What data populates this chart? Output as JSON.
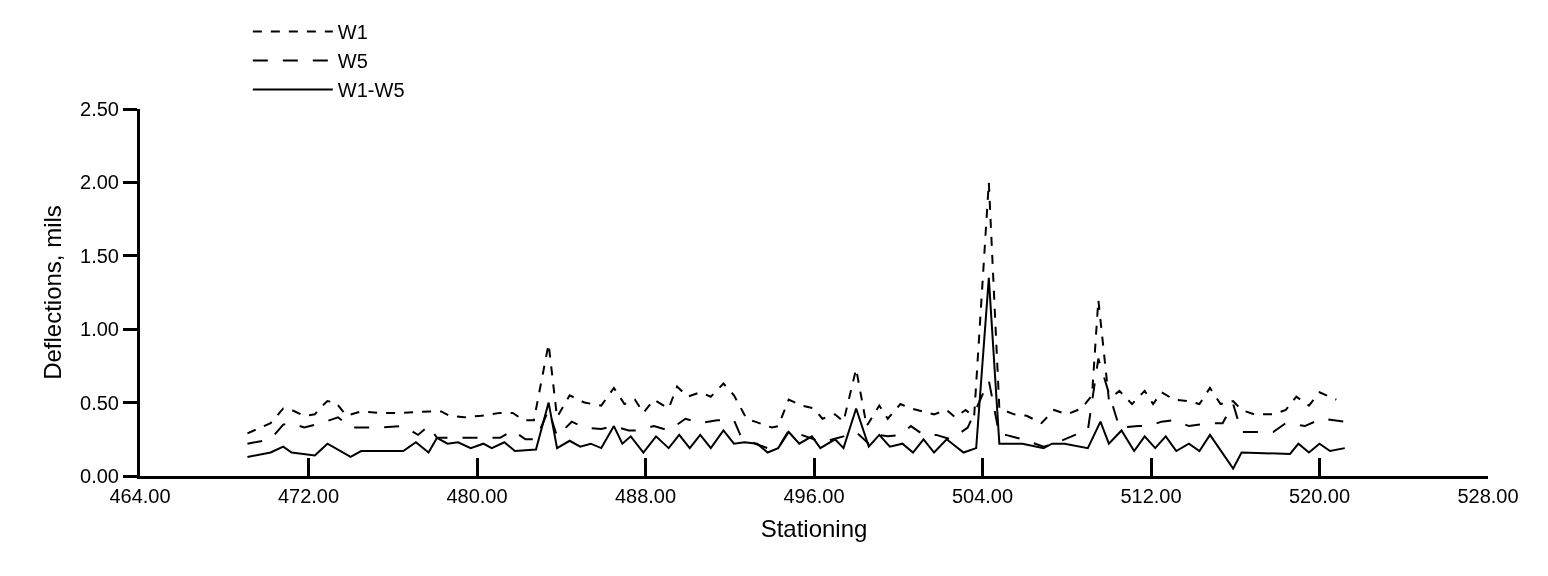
{
  "chart_data": {
    "type": "line",
    "xlabel": "Stationing",
    "ylabel": "Deflections, mils",
    "xlim": [
      464,
      528
    ],
    "ylim": [
      0,
      2.5
    ],
    "xticks": [
      {
        "value": 464,
        "label": "464.00"
      },
      {
        "value": 472,
        "label": "472.00"
      },
      {
        "value": 480,
        "label": "480.00"
      },
      {
        "value": 488,
        "label": "488.00"
      },
      {
        "value": 496,
        "label": "496.00"
      },
      {
        "value": 504,
        "label": "504.00"
      },
      {
        "value": 512,
        "label": "512.00"
      },
      {
        "value": 520,
        "label": "520.00"
      },
      {
        "value": 528,
        "label": "528.00"
      }
    ],
    "yticks": [
      {
        "value": 0,
        "label": "0.00"
      },
      {
        "value": 0.5,
        "label": "0.50"
      },
      {
        "value": 1,
        "label": "1.00"
      },
      {
        "value": 1.5,
        "label": "1.50"
      },
      {
        "value": 2,
        "label": "2.00"
      },
      {
        "value": 2.5,
        "label": "2.50"
      }
    ],
    "legend": "top left",
    "marker": "none",
    "series": [
      {
        "name": "W1",
        "color": "#000000",
        "line_style": "dotted",
        "x": [
          469.1,
          470.2,
          470.8,
          471.2,
          471.8,
          472.3,
          472.6,
          472.9,
          473.3,
          473.8,
          474.5,
          475.3,
          476.4,
          477.8,
          478.3,
          478.7,
          479.4,
          480.2,
          481.1,
          481.7,
          482.2,
          482.7,
          483.4,
          483.8,
          484.4,
          485.1,
          485.9,
          486.5,
          487.0,
          487.5,
          487.9,
          488.4,
          489.1,
          489.5,
          490.0,
          490.6,
          491.1,
          491.7,
          492.2,
          492.8,
          493.2,
          494.0,
          494.3,
          494.8,
          495.4,
          496.0,
          496.4,
          497.0,
          497.4,
          498.0,
          498.5,
          499.1,
          499.5,
          500.1,
          500.6,
          501.7,
          502.3,
          502.7,
          503.2,
          503.6,
          504.3,
          504.8,
          505.5,
          506.1,
          506.8,
          507.4,
          508.0,
          508.7,
          509.2,
          509.5,
          510.0,
          510.5,
          511.1,
          511.7,
          512.1,
          512.5,
          513.1,
          513.8,
          514.3,
          514.8,
          515.3,
          515.9,
          516.3,
          516.9,
          517.8,
          518.4,
          518.9,
          519.5,
          520.0,
          520.8
        ],
        "values": [
          0.29,
          0.36,
          0.46,
          0.45,
          0.41,
          0.42,
          0.47,
          0.51,
          0.5,
          0.41,
          0.44,
          0.43,
          0.43,
          0.44,
          0.44,
          0.41,
          0.4,
          0.41,
          0.43,
          0.43,
          0.38,
          0.38,
          0.9,
          0.4,
          0.55,
          0.5,
          0.48,
          0.6,
          0.49,
          0.52,
          0.43,
          0.52,
          0.46,
          0.61,
          0.54,
          0.57,
          0.54,
          0.63,
          0.55,
          0.39,
          0.37,
          0.33,
          0.34,
          0.52,
          0.48,
          0.46,
          0.39,
          0.42,
          0.37,
          0.73,
          0.34,
          0.48,
          0.39,
          0.49,
          0.46,
          0.42,
          0.45,
          0.4,
          0.45,
          0.4,
          2.0,
          0.46,
          0.42,
          0.41,
          0.36,
          0.45,
          0.42,
          0.46,
          0.55,
          1.2,
          0.52,
          0.58,
          0.49,
          0.58,
          0.49,
          0.57,
          0.52,
          0.51,
          0.49,
          0.6,
          0.49,
          0.51,
          0.45,
          0.42,
          0.42,
          0.45,
          0.54,
          0.48,
          0.57,
          0.52
        ]
      },
      {
        "name": "W5",
        "color": "#000000",
        "line_style": "dashed",
        "x": [
          469.1,
          470.2,
          470.8,
          471.2,
          471.8,
          472.6,
          473.4,
          474.0,
          475.4,
          476.5,
          477.2,
          477.7,
          478.1,
          479.7,
          481.1,
          481.7,
          482.3,
          482.8,
          483.4,
          483.8,
          484.5,
          485.1,
          485.9,
          486.5,
          487.2,
          487.5,
          488.4,
          489.1,
          489.9,
          490.6,
          491.4,
          492.2,
          492.5,
          493.2,
          493.8,
          494.3,
          494.8,
          495.4,
          496.0,
          496.4,
          496.9,
          497.4,
          498.0,
          498.6,
          499.1,
          499.5,
          500.1,
          500.6,
          501.2,
          501.8,
          502.5,
          503.3,
          504.3,
          504.8,
          505.1,
          505.9,
          506.9,
          507.4,
          508.4,
          509.0,
          509.5,
          510.5,
          511.4,
          511.9,
          512.5,
          513.1,
          513.8,
          514.8,
          515.4,
          515.9,
          516.3,
          517.1,
          517.8,
          518.4,
          519.3,
          520.1,
          521.2
        ],
        "values": [
          0.22,
          0.25,
          0.35,
          0.36,
          0.33,
          0.36,
          0.4,
          0.33,
          0.33,
          0.34,
          0.28,
          0.34,
          0.26,
          0.26,
          0.26,
          0.31,
          0.25,
          0.25,
          0.45,
          0.27,
          0.37,
          0.33,
          0.32,
          0.34,
          0.31,
          0.31,
          0.34,
          0.31,
          0.39,
          0.36,
          0.38,
          0.38,
          0.28,
          0.22,
          0.19,
          0.19,
          0.31,
          0.28,
          0.25,
          0.23,
          0.25,
          0.27,
          0.3,
          0.22,
          0.28,
          0.27,
          0.28,
          0.34,
          0.28,
          0.28,
          0.25,
          0.33,
          0.65,
          0.28,
          0.28,
          0.25,
          0.2,
          0.22,
          0.28,
          0.31,
          0.8,
          0.33,
          0.34,
          0.34,
          0.37,
          0.38,
          0.34,
          0.36,
          0.36,
          0.49,
          0.3,
          0.3,
          0.3,
          0.36,
          0.34,
          0.39,
          0.37
        ]
      },
      {
        "name": "W1-W5",
        "color": "#000000",
        "line_style": "solid",
        "x": [
          469.1,
          470.2,
          470.8,
          471.2,
          472.3,
          472.9,
          474.0,
          474.5,
          475.3,
          476.5,
          477.1,
          477.7,
          478.1,
          478.6,
          479.1,
          479.7,
          480.3,
          480.7,
          481.3,
          481.8,
          482.8,
          483.4,
          483.8,
          484.4,
          484.9,
          485.4,
          485.9,
          486.5,
          486.9,
          487.3,
          487.9,
          488.5,
          489.1,
          489.6,
          490.1,
          490.6,
          491.1,
          491.7,
          492.2,
          492.7,
          493.3,
          493.8,
          494.3,
          494.8,
          495.3,
          495.9,
          496.3,
          497.0,
          497.4,
          498.0,
          498.6,
          499.1,
          499.6,
          500.2,
          500.7,
          501.2,
          501.7,
          502.3,
          503.1,
          503.7,
          504.3,
          504.8,
          505.9,
          506.9,
          507.3,
          507.9,
          509.0,
          509.6,
          510.0,
          510.6,
          511.2,
          511.7,
          512.2,
          512.7,
          513.2,
          513.8,
          514.3,
          514.8,
          515.9,
          516.3,
          518.6,
          519.0,
          519.5,
          520.0,
          520.5,
          521.2
        ],
        "values": [
          0.13,
          0.16,
          0.2,
          0.16,
          0.14,
          0.22,
          0.13,
          0.17,
          0.17,
          0.17,
          0.23,
          0.16,
          0.26,
          0.22,
          0.23,
          0.19,
          0.22,
          0.19,
          0.23,
          0.17,
          0.18,
          0.5,
          0.19,
          0.24,
          0.2,
          0.22,
          0.19,
          0.34,
          0.22,
          0.27,
          0.16,
          0.27,
          0.19,
          0.28,
          0.19,
          0.28,
          0.19,
          0.31,
          0.22,
          0.23,
          0.22,
          0.16,
          0.19,
          0.3,
          0.22,
          0.27,
          0.19,
          0.25,
          0.19,
          0.46,
          0.2,
          0.28,
          0.2,
          0.22,
          0.16,
          0.25,
          0.16,
          0.25,
          0.16,
          0.19,
          1.35,
          0.22,
          0.22,
          0.19,
          0.22,
          0.22,
          0.19,
          0.37,
          0.22,
          0.31,
          0.17,
          0.27,
          0.19,
          0.27,
          0.17,
          0.22,
          0.17,
          0.28,
          0.05,
          0.16,
          0.15,
          0.22,
          0.16,
          0.22,
          0.17,
          0.19
        ]
      }
    ]
  }
}
